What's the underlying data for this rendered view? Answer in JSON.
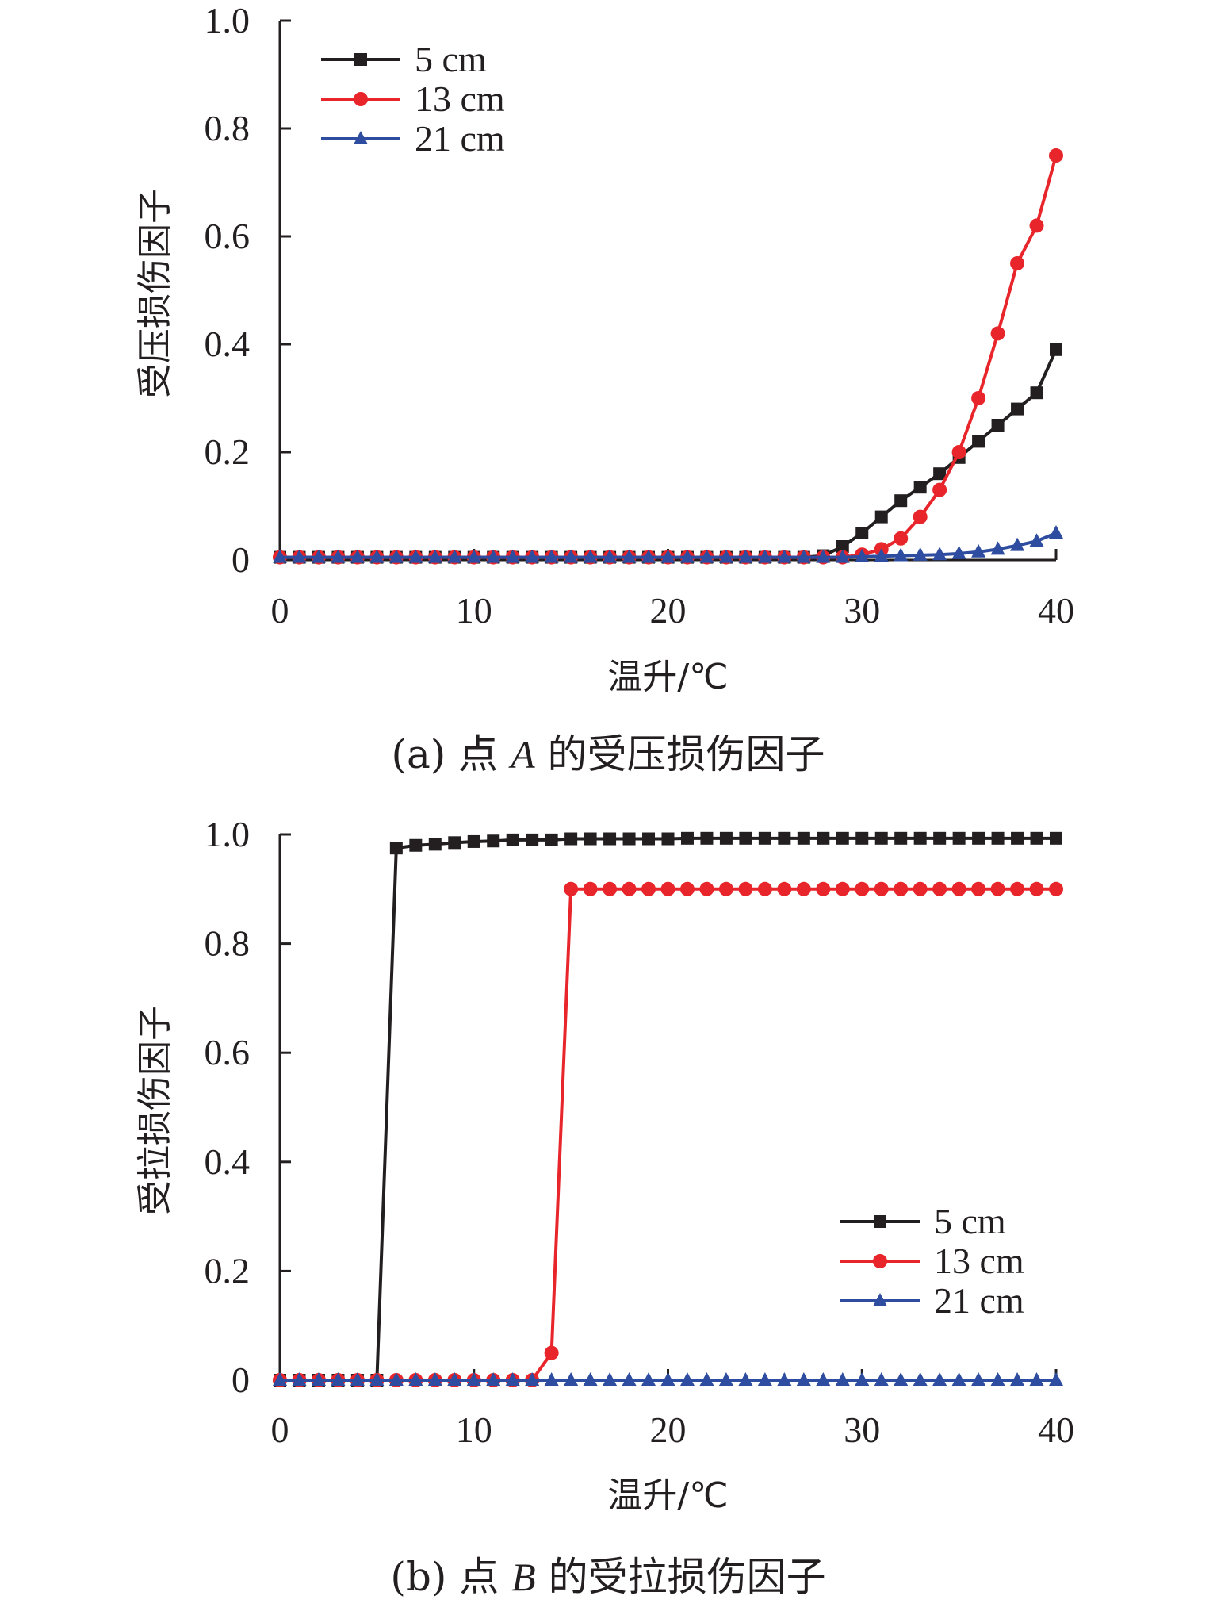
{
  "chart_data": [
    {
      "type": "line",
      "caption_prefix": "(a) 点",
      "caption_point": "A",
      "caption_suffix": "的受压损伤因子",
      "xlabel": "温升/℃",
      "ylabel": "受压损伤因子",
      "xlim": [
        0,
        40
      ],
      "ylim": [
        0,
        1.0
      ],
      "x_ticks": [
        "0",
        "10",
        "20",
        "30",
        "40"
      ],
      "y_ticks": [
        "0",
        "0.2",
        "0.4",
        "0.6",
        "0.8",
        "1.0"
      ],
      "legend_position": "top-left",
      "x": [
        0,
        1,
        2,
        3,
        4,
        5,
        6,
        7,
        8,
        9,
        10,
        11,
        12,
        13,
        14,
        15,
        16,
        17,
        18,
        19,
        20,
        21,
        22,
        23,
        24,
        25,
        26,
        27,
        28,
        29,
        30,
        31,
        32,
        33,
        34,
        35,
        36,
        37,
        38,
        39,
        40
      ],
      "series": [
        {
          "name": "5 cm",
          "color": "#231f20",
          "marker": "square",
          "values": [
            0.005,
            0.005,
            0.005,
            0.005,
            0.005,
            0.005,
            0.005,
            0.005,
            0.005,
            0.005,
            0.005,
            0.005,
            0.005,
            0.005,
            0.005,
            0.005,
            0.005,
            0.005,
            0.005,
            0.005,
            0.005,
            0.005,
            0.005,
            0.005,
            0.005,
            0.005,
            0.005,
            0.005,
            0.008,
            0.025,
            0.05,
            0.08,
            0.11,
            0.135,
            0.16,
            0.19,
            0.22,
            0.25,
            0.28,
            0.31,
            0.39
          ]
        },
        {
          "name": "13 cm",
          "color": "#e8252a",
          "marker": "circle",
          "values": [
            0.005,
            0.005,
            0.005,
            0.005,
            0.005,
            0.005,
            0.005,
            0.005,
            0.005,
            0.005,
            0.005,
            0.005,
            0.005,
            0.005,
            0.005,
            0.005,
            0.005,
            0.005,
            0.005,
            0.005,
            0.005,
            0.005,
            0.005,
            0.005,
            0.005,
            0.005,
            0.005,
            0.005,
            0.005,
            0.005,
            0.01,
            0.02,
            0.04,
            0.08,
            0.13,
            0.2,
            0.3,
            0.42,
            0.55,
            0.62,
            0.75
          ]
        },
        {
          "name": "21 cm",
          "color": "#2e4da0",
          "marker": "triangle",
          "values": [
            0.005,
            0.005,
            0.005,
            0.005,
            0.005,
            0.005,
            0.005,
            0.005,
            0.005,
            0.005,
            0.005,
            0.005,
            0.005,
            0.005,
            0.005,
            0.005,
            0.005,
            0.005,
            0.005,
            0.005,
            0.005,
            0.005,
            0.005,
            0.005,
            0.005,
            0.005,
            0.005,
            0.005,
            0.005,
            0.005,
            0.006,
            0.007,
            0.008,
            0.009,
            0.01,
            0.012,
            0.015,
            0.02,
            0.027,
            0.035,
            0.05
          ]
        }
      ]
    },
    {
      "type": "line",
      "caption_prefix": "(b) 点",
      "caption_point": "B",
      "caption_suffix": "的受拉损伤因子",
      "xlabel": "温升/℃",
      "ylabel": "受拉损伤因子",
      "xlim": [
        0,
        40
      ],
      "ylim": [
        0,
        1.0
      ],
      "x_ticks": [
        "0",
        "10",
        "20",
        "30",
        "40"
      ],
      "y_ticks": [
        "0",
        "0.2",
        "0.4",
        "0.6",
        "0.8",
        "1.0"
      ],
      "legend_position": "bottom-right",
      "x": [
        0,
        1,
        2,
        3,
        4,
        5,
        6,
        7,
        8,
        9,
        10,
        11,
        12,
        13,
        14,
        15,
        16,
        17,
        18,
        19,
        20,
        21,
        22,
        23,
        24,
        25,
        26,
        27,
        28,
        29,
        30,
        31,
        32,
        33,
        34,
        35,
        36,
        37,
        38,
        39,
        40
      ],
      "series": [
        {
          "name": "5 cm",
          "color": "#231f20",
          "marker": "square",
          "values": [
            0.0,
            0.0,
            0.0,
            0.0,
            0.0,
            0.0,
            0.975,
            0.98,
            0.982,
            0.985,
            0.987,
            0.988,
            0.99,
            0.99,
            0.99,
            0.992,
            0.992,
            0.992,
            0.992,
            0.992,
            0.992,
            0.993,
            0.993,
            0.993,
            0.993,
            0.993,
            0.993,
            0.993,
            0.993,
            0.993,
            0.993,
            0.993,
            0.993,
            0.993,
            0.993,
            0.993,
            0.993,
            0.993,
            0.993,
            0.993,
            0.993
          ]
        },
        {
          "name": "13 cm",
          "color": "#e8252a",
          "marker": "circle",
          "values": [
            0.0,
            0.0,
            0.0,
            0.0,
            0.0,
            0.0,
            0.0,
            0.0,
            0.0,
            0.0,
            0.0,
            0.0,
            0.0,
            0.0,
            0.05,
            0.9,
            0.9,
            0.9,
            0.9,
            0.9,
            0.9,
            0.9,
            0.9,
            0.9,
            0.9,
            0.9,
            0.9,
            0.9,
            0.9,
            0.9,
            0.9,
            0.9,
            0.9,
            0.9,
            0.9,
            0.9,
            0.9,
            0.9,
            0.9,
            0.9,
            0.9
          ]
        },
        {
          "name": "21 cm",
          "color": "#2e4da0",
          "marker": "triangle",
          "values": [
            0.0,
            0.0,
            0.0,
            0.0,
            0.0,
            0.0,
            0.0,
            0.0,
            0.0,
            0.0,
            0.0,
            0.0,
            0.0,
            0.0,
            0.0,
            0.0,
            0.0,
            0.0,
            0.0,
            0.0,
            0.0,
            0.0,
            0.0,
            0.0,
            0.0,
            0.0,
            0.0,
            0.0,
            0.0,
            0.0,
            0.0,
            0.0,
            0.0,
            0.0,
            0.0,
            0.0,
            0.0,
            0.0,
            0.0,
            0.0,
            0.0
          ]
        }
      ]
    }
  ]
}
